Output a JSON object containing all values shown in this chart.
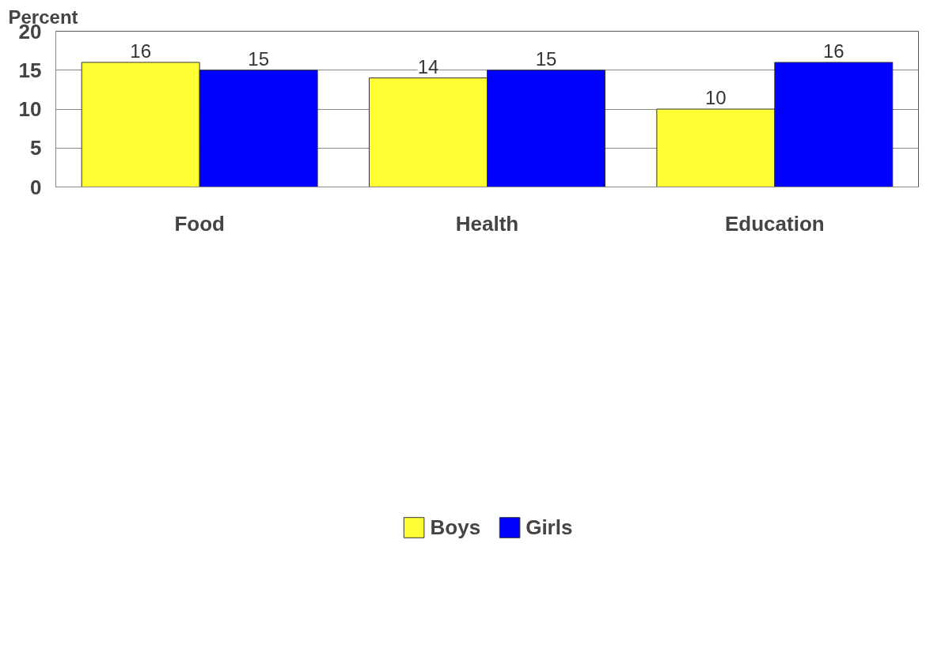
{
  "chart_data": {
    "type": "bar",
    "ylabel": "Percent",
    "categories": [
      "Food",
      "Health",
      "Education"
    ],
    "series": [
      {
        "name": "Boys",
        "color": "#ffff33",
        "values": [
          16,
          14,
          10
        ]
      },
      {
        "name": "Girls",
        "color": "#0000ff",
        "values": [
          15,
          15,
          16
        ]
      }
    ],
    "ylim": [
      0,
      20
    ],
    "yticks": [
      0,
      5,
      10,
      15,
      20
    ],
    "grid": "y",
    "legend": "bottom",
    "data_labels": true
  }
}
